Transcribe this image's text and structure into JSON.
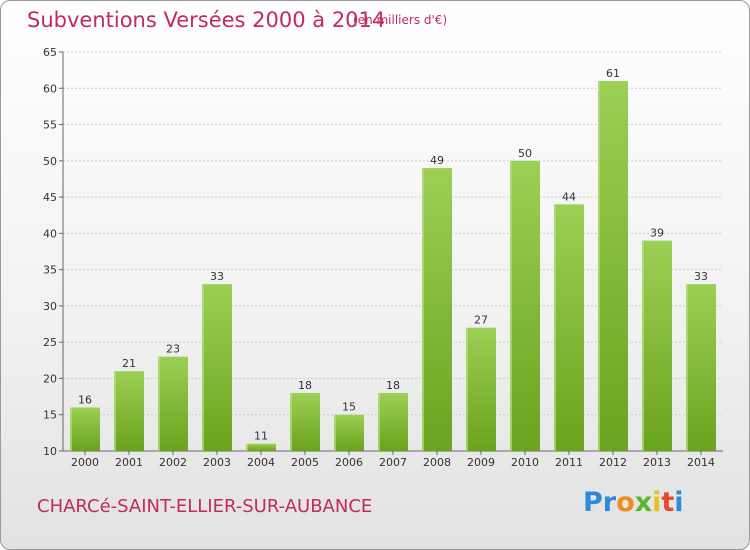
{
  "header": {
    "title": "Subventions Versées 2000 à 2014",
    "subtitle": "(en milliers d'€)"
  },
  "footer": {
    "town": "CHARCé-SAINT-ELLIER-SUR-AUBANCE",
    "logo_letters": [
      {
        "char": "P",
        "color": "#2e8ad8"
      },
      {
        "char": "r",
        "color": "#2e8ad8"
      },
      {
        "char": "o",
        "color": "#f08a1a"
      },
      {
        "char": "x",
        "color": "#5ab52e"
      },
      {
        "char": "i",
        "color": "#e8c21a"
      },
      {
        "char": "t",
        "color": "#e24a2a"
      },
      {
        "char": "i",
        "color": "#2e8ad8"
      }
    ]
  },
  "colors": {
    "accent": "#c22a5f",
    "bar_top": "#9ccf55",
    "bar_bottom": "#6aa31e",
    "grid": "#cccccc"
  },
  "chart_data": {
    "type": "bar",
    "title": "Subventions Versées 2000 à 2014",
    "subtitle": "(en milliers d'€)",
    "xlabel": "",
    "ylabel": "",
    "categories": [
      "2000",
      "2001",
      "2002",
      "2003",
      "2004",
      "2005",
      "2006",
      "2007",
      "2008",
      "2009",
      "2010",
      "2011",
      "2012",
      "2013",
      "2014"
    ],
    "values": [
      16,
      21,
      23,
      33,
      11,
      18,
      15,
      18,
      49,
      27,
      50,
      44,
      61,
      39,
      33
    ],
    "ylim": [
      10,
      65
    ],
    "yticks": [
      10,
      15,
      20,
      25,
      30,
      35,
      40,
      45,
      50,
      55,
      60,
      65
    ],
    "grid": true,
    "data_labels": true
  }
}
